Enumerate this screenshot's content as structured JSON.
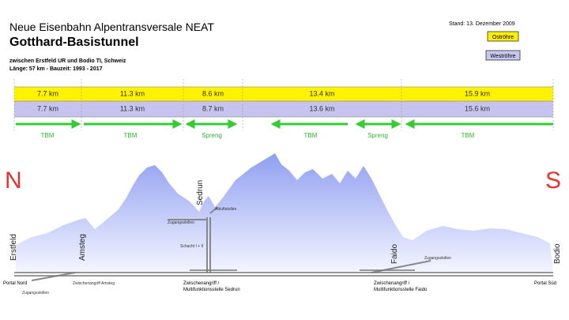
{
  "header": {
    "title": "Neue Eisenbahn Alpentransversale NEAT",
    "main_title": "Gotthard-Basistunnel",
    "subtitle": "zwischen Erstfeld UR und Bodio TI, Schweiz",
    "info": "Länge: 57 km  -  Bauzeit: 1993 - 2017",
    "date": "Stand: 13. Dezember 2009"
  },
  "legend": {
    "east": "Oströhre",
    "west": "Weströhre"
  },
  "table": {
    "rows": [
      [
        "7.7 km",
        "11.3 km",
        "8.6 km",
        "13.4 km",
        "15.9 km"
      ],
      [
        "7.7 km",
        "11.3 km",
        "8.7 km",
        "13.6 km",
        "15.6 km"
      ]
    ]
  },
  "methods": [
    "TBM",
    "TBM",
    "Spreng",
    "TBM",
    "Spreng",
    "TBM"
  ],
  "compass": {
    "north": "N",
    "south": "S"
  },
  "places": [
    "Erstfeld",
    "Amsteg",
    "Sedrun",
    "Faido",
    "Bodio"
  ],
  "labels": {
    "abluft": "Abluftstollen",
    "zugang_sedrun": "Zugangsstollen",
    "schacht": "Schacht I + II",
    "zugang_faido": "Zugangsstollen",
    "portal_nord": "Portal Nord",
    "portal_sued": "Portal Süd",
    "amsteg": "Zwischenangriff Amsteg",
    "zugang_amsteg": "Zugangsstollen",
    "sedrun_1": "Zwischenangriff /",
    "sedrun_2": "Multifunktionsstelle Sedrun",
    "faido_1": "Zwischenangriff /",
    "faido_2": "Multifunktionsstelle Faido"
  }
}
